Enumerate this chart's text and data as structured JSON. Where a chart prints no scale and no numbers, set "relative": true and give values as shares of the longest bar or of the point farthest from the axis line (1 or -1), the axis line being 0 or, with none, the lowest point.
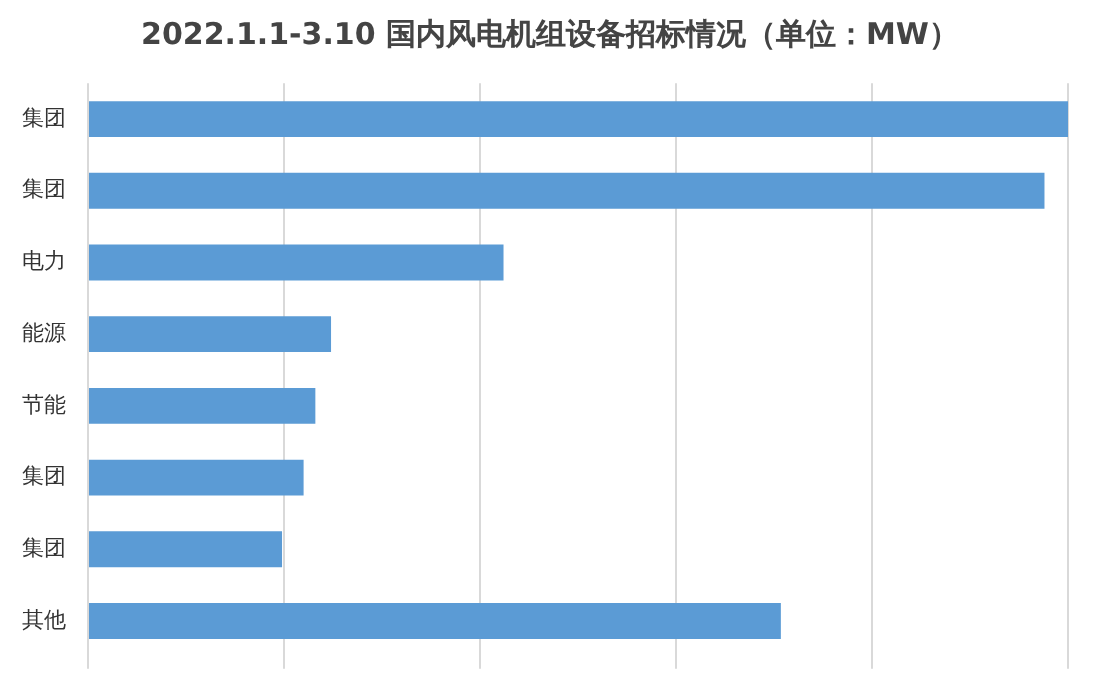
{
  "chart_data": {
    "type": "bar",
    "orientation": "horizontal",
    "relative": true,
    "title": "2022.1.1-3.10 国内风电机组设备招标情况（单位：MW）",
    "categories": [
      "集团",
      "集团",
      "电力",
      "能源",
      "节能",
      "集团",
      "集团",
      "其他"
    ],
    "values": [
      1,
      0.976,
      0.424,
      0.248,
      0.232,
      0.22,
      0.198,
      0.707
    ],
    "color": "#5b9bd5",
    "grid": "x",
    "legend": false
  }
}
